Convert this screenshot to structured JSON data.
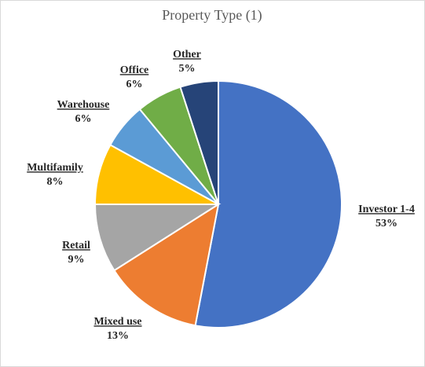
{
  "chart_data": {
    "type": "pie",
    "title": "Property Type (1)",
    "categories": [
      "Investor 1-4",
      "Mixed use",
      "Retail",
      "Multifamily",
      "Warehouse",
      "Office",
      "Other"
    ],
    "values": [
      53,
      13,
      9,
      8,
      6,
      6,
      5
    ],
    "value_labels": [
      "53%",
      "13%",
      "9%",
      "8%",
      "6%",
      "6%",
      "5%"
    ],
    "colors": [
      "#4472c4",
      "#ed7d31",
      "#a5a5a5",
      "#ffc000",
      "#5b9bd5",
      "#70ad47",
      "#264478"
    ]
  }
}
